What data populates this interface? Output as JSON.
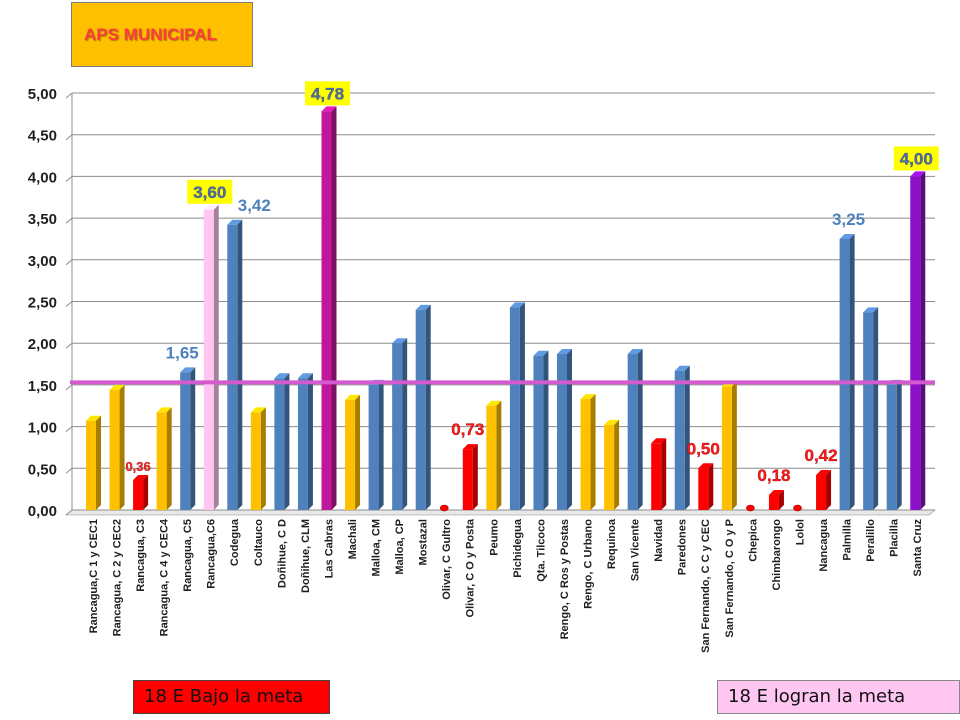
{
  "header": {
    "title": "APS MUNICIPAL"
  },
  "legend": {
    "below_label": "18 E Bajo la meta",
    "above_label": "18 E logran la meta"
  },
  "colors": {
    "blue": "#4f81bd",
    "yellow": "#ffc000",
    "red": "#ff0000",
    "pink": "#ffc6f2",
    "magenta": "#c0189c",
    "purple": "#8b10c8",
    "goal_line": "#d45ad0",
    "label_blue": "#4f81bd",
    "label_red": "#ff1a1a",
    "label_highlight_bg": "#ffff00"
  },
  "chart_data": {
    "type": "bar",
    "title": "",
    "xlabel": "",
    "ylabel": "",
    "ylim": [
      0,
      5
    ],
    "yticks": [
      "0,00",
      "0,50",
      "1,00",
      "1,50",
      "2,00",
      "2,50",
      "3,00",
      "3,50",
      "4,00",
      "4,50",
      "5,00"
    ],
    "goal_line": 1.53,
    "grid": true,
    "categories": [
      "Rancagua,C 1 y CEC1",
      "Rancagua, C 2 y CEC2",
      "Rancagua, C3",
      "Rancagua, C 4 y CEC4",
      "Rancagua, C5",
      "Rancagua,C6",
      "Codegua",
      "Coltauco",
      "Doñihue, C D",
      "Doñihue, CLM",
      "Las Cabras",
      "Machali",
      "Malloa, CM",
      "Malloa, CP",
      "Mostazal",
      "Olivar, C Gultro",
      "Olivar,  C O y Posta",
      "Peumo",
      "Pichidegua",
      "Qta. Tilcoco",
      "Rengo,  C Ros y Postas",
      "Rengo, C Urbano",
      "Requinoa",
      "San Vicente",
      "Navidad",
      "Paredones",
      "San Fernando, C C y CEC",
      "San Fernando, C O y P",
      "Chepica",
      "Chimbarongo",
      "Lolol",
      "Nancagua",
      "Palmilla",
      "Peralillo",
      "Placilla",
      "Santa Cruz"
    ],
    "values": [
      1.07,
      1.44,
      0.36,
      1.17,
      1.65,
      3.6,
      3.42,
      1.17,
      1.58,
      1.58,
      4.78,
      1.32,
      1.5,
      2.0,
      2.4,
      0.03,
      0.73,
      1.25,
      2.43,
      1.85,
      1.87,
      1.33,
      1.02,
      1.87,
      0.8,
      1.67,
      0.5,
      1.48,
      0.03,
      0.18,
      0.02,
      0.42,
      3.25,
      2.37,
      1.5,
      4.0
    ],
    "bar_colors": [
      "yellow",
      "yellow",
      "red",
      "yellow",
      "blue",
      "pink",
      "blue",
      "yellow",
      "blue",
      "blue",
      "magenta",
      "yellow",
      "blue",
      "blue",
      "blue",
      "red",
      "red",
      "yellow",
      "blue",
      "blue",
      "blue",
      "yellow",
      "yellow",
      "blue",
      "red",
      "blue",
      "red",
      "yellow",
      "red",
      "red",
      "red",
      "red",
      "blue",
      "blue",
      "blue",
      "purple"
    ],
    "data_labels": [
      {
        "index": 2,
        "text": "0,36",
        "style": "red-small"
      },
      {
        "index": 4,
        "text": "1,65",
        "style": "blue"
      },
      {
        "index": 5,
        "text": "3,60",
        "style": "highlight"
      },
      {
        "index": 6,
        "text": "3,42",
        "style": "blue"
      },
      {
        "index": 10,
        "text": "4,78",
        "style": "highlight"
      },
      {
        "index": 16,
        "text": "0,73",
        "style": "red"
      },
      {
        "index": 26,
        "text": "0,50",
        "style": "red"
      },
      {
        "index": 29,
        "text": "0,18",
        "style": "red"
      },
      {
        "index": 31,
        "text": "0,42",
        "style": "red"
      },
      {
        "index": 32,
        "text": "3,25",
        "style": "blue"
      },
      {
        "index": 35,
        "text": "4,00",
        "style": "highlight"
      }
    ]
  }
}
